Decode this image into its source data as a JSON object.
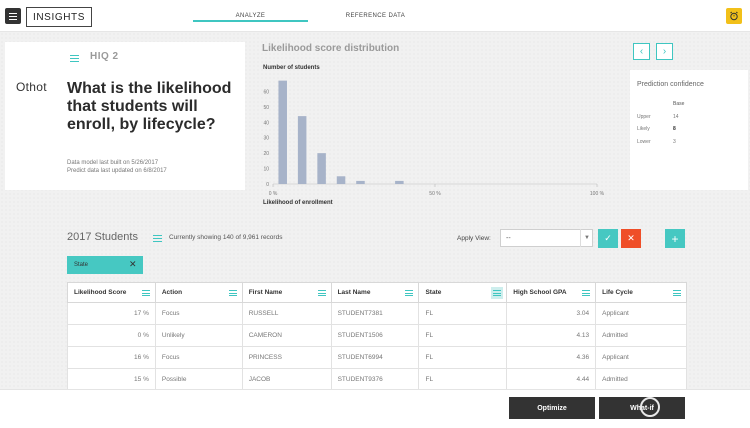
{
  "header": {
    "brand": "INSIGHTS",
    "tabs": [
      {
        "label": "ANALYZE",
        "active": true
      },
      {
        "label": "REFERENCE DATA",
        "active": false
      }
    ],
    "alarm_icon": "alarm-clock-icon",
    "accent": "#3fc6c1"
  },
  "question": {
    "label": "HIQ 2",
    "logo": "Othot",
    "text": "What is the likelihood that students will enroll, by lifecycle?",
    "built_on": "Data model last built on 5/26/2017",
    "updated_on": "Predict data last updated on 6/8/2017"
  },
  "chart_data": {
    "type": "bar",
    "title": "Likelihood score distribution",
    "ylabel": "Number of students",
    "xlabel": "Likelihood of enrollment",
    "yticks": [
      "0",
      "10",
      "20",
      "30",
      "40",
      "50",
      "60"
    ],
    "xticks": [
      "0 %",
      "50 %",
      "100 %"
    ],
    "ylim": [
      0,
      70
    ],
    "xlim": [
      0,
      100
    ],
    "bin_width": 3,
    "x": [
      3,
      9,
      15,
      21,
      27,
      33,
      39
    ],
    "values": [
      67,
      44,
      20,
      5,
      2,
      0,
      2
    ],
    "bar_color": "#a7b3c9",
    "grid": false
  },
  "nav": {
    "prev": "‹",
    "next": "›"
  },
  "confidence": {
    "title": "Prediction confidence",
    "column": "Base",
    "rows": [
      {
        "label": "Upper",
        "value": "14"
      },
      {
        "label": "Likely",
        "value": "8"
      },
      {
        "label": "Lower",
        "value": "3"
      }
    ]
  },
  "table_section": {
    "title": "2017 Students",
    "records": "Currently showing 140 of 9,961 records",
    "apply_view_label": "Apply View:",
    "view_value": "--",
    "confirm": "✓",
    "cancel": "✕",
    "add": "+",
    "filter_chip": "State",
    "filter_chip_close": "✕"
  },
  "table": {
    "columns": [
      "Likelihood Score",
      "Action",
      "First Name",
      "Last Name",
      "State",
      "High School GPA",
      "Life Cycle"
    ],
    "rows": [
      [
        "17 %",
        "Focus",
        "RUSSELL",
        "STUDENT7381",
        "FL",
        "3.04",
        "Applicant"
      ],
      [
        "0 %",
        "Unlikely",
        "CAMERON",
        "STUDENT1506",
        "FL",
        "4.13",
        "Admitted"
      ],
      [
        "16 %",
        "Focus",
        "PRINCESS",
        "STUDENT6994",
        "FL",
        "4.36",
        "Applicant"
      ],
      [
        "15 %",
        "Possible",
        "JACOB",
        "STUDENT9376",
        "FL",
        "4.44",
        "Admitted"
      ]
    ]
  },
  "footer": {
    "optimize": "Optimize",
    "whatif": "What-if"
  }
}
